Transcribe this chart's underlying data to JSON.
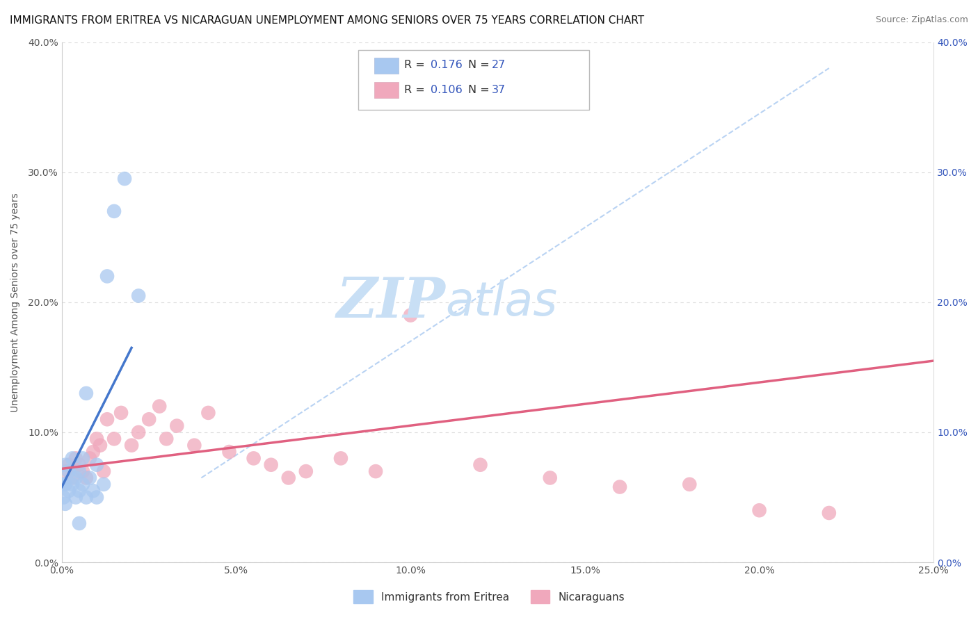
{
  "title": "IMMIGRANTS FROM ERITREA VS NICARAGUAN UNEMPLOYMENT AMONG SENIORS OVER 75 YEARS CORRELATION CHART",
  "source": "Source: ZipAtlas.com",
  "ylabel": "Unemployment Among Seniors over 75 years",
  "xlim": [
    0.0,
    0.25
  ],
  "ylim": [
    0.0,
    0.4
  ],
  "xticks": [
    0.0,
    0.05,
    0.1,
    0.15,
    0.2,
    0.25
  ],
  "yticks": [
    0.0,
    0.1,
    0.2,
    0.3,
    0.4
  ],
  "xtick_labels": [
    "0.0%",
    "5.0%",
    "10.0%",
    "15.0%",
    "20.0%",
    "25.0%"
  ],
  "ytick_labels": [
    "0.0%",
    "10.0%",
    "20.0%",
    "30.0%",
    "40.0%"
  ],
  "r_eritrea": "0.176",
  "n_eritrea": "27",
  "r_nicaraguan": "0.106",
  "n_nicaraguan": "37",
  "blue_scatter_x": [
    0.0005,
    0.0005,
    0.001,
    0.001,
    0.001,
    0.002,
    0.002,
    0.003,
    0.003,
    0.004,
    0.004,
    0.005,
    0.005,
    0.006,
    0.006,
    0.007,
    0.007,
    0.008,
    0.009,
    0.01,
    0.01,
    0.012,
    0.013,
    0.015,
    0.018,
    0.022,
    0.005
  ],
  "blue_scatter_y": [
    0.06,
    0.05,
    0.075,
    0.06,
    0.045,
    0.07,
    0.055,
    0.08,
    0.06,
    0.065,
    0.05,
    0.07,
    0.055,
    0.08,
    0.06,
    0.13,
    0.05,
    0.065,
    0.055,
    0.075,
    0.05,
    0.06,
    0.22,
    0.27,
    0.295,
    0.205,
    0.03
  ],
  "pink_scatter_x": [
    0.001,
    0.002,
    0.003,
    0.004,
    0.005,
    0.006,
    0.007,
    0.008,
    0.009,
    0.01,
    0.011,
    0.012,
    0.013,
    0.015,
    0.017,
    0.02,
    0.022,
    0.025,
    0.028,
    0.03,
    0.033,
    0.038,
    0.042,
    0.048,
    0.055,
    0.06,
    0.065,
    0.07,
    0.08,
    0.09,
    0.1,
    0.12,
    0.14,
    0.16,
    0.18,
    0.2,
    0.22
  ],
  "pink_scatter_y": [
    0.07,
    0.075,
    0.065,
    0.08,
    0.075,
    0.07,
    0.065,
    0.08,
    0.085,
    0.095,
    0.09,
    0.07,
    0.11,
    0.095,
    0.115,
    0.09,
    0.1,
    0.11,
    0.12,
    0.095,
    0.105,
    0.09,
    0.115,
    0.085,
    0.08,
    0.075,
    0.065,
    0.07,
    0.08,
    0.07,
    0.19,
    0.075,
    0.065,
    0.058,
    0.06,
    0.04,
    0.038
  ],
  "blue_line_x": [
    0.0,
    0.02
  ],
  "blue_line_y": [
    0.058,
    0.165
  ],
  "pink_line_x": [
    0.0,
    0.25
  ],
  "pink_line_y": [
    0.072,
    0.155
  ],
  "dashed_line_x": [
    0.04,
    0.22
  ],
  "dashed_line_y": [
    0.065,
    0.38
  ],
  "scatter_color_blue": "#a8c8f0",
  "scatter_color_pink": "#f0a8bc",
  "line_color_blue": "#4477cc",
  "line_color_pink": "#e06080",
  "dashed_line_color": "#a8c8f0",
  "watermark_zip": "ZIP",
  "watermark_atlas": "atlas",
  "watermark_color_zip": "#c8dff5",
  "watermark_color_atlas": "#c8dff5",
  "background_color": "#ffffff",
  "grid_color": "#dddddd",
  "title_fontsize": 11,
  "axis_label_fontsize": 10,
  "tick_fontsize": 10,
  "r_label_color": "#333333",
  "n_value_color": "#3355bb"
}
